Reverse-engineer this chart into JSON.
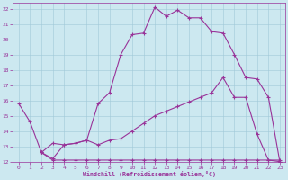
{
  "xlabel": "Windchill (Refroidissement éolien,°C)",
  "bg_color": "#cce8f0",
  "line_color": "#993399",
  "xlim": [
    -0.5,
    23.5
  ],
  "ylim": [
    12,
    22.4
  ],
  "xticks": [
    0,
    1,
    2,
    3,
    4,
    5,
    6,
    7,
    8,
    9,
    10,
    11,
    12,
    13,
    14,
    15,
    16,
    17,
    18,
    19,
    20,
    21,
    22,
    23
  ],
  "yticks": [
    12,
    13,
    14,
    15,
    16,
    17,
    18,
    19,
    20,
    21,
    22
  ],
  "line1_x": [
    0,
    1,
    2,
    3,
    4,
    5,
    6,
    7,
    8,
    9,
    10,
    11,
    12,
    13,
    14,
    15,
    16,
    17,
    18,
    19,
    20,
    21,
    22,
    23
  ],
  "line1_y": [
    15.8,
    14.6,
    12.6,
    12.1,
    12.1,
    12.1,
    12.1,
    12.1,
    12.1,
    12.1,
    12.1,
    12.1,
    12.1,
    12.1,
    12.1,
    12.1,
    12.1,
    12.1,
    12.1,
    12.1,
    12.1,
    12.1,
    12.1,
    12.1
  ],
  "line2_x": [
    2,
    3,
    4,
    5,
    6,
    7,
    8,
    9,
    10,
    11,
    12,
    13,
    14,
    15,
    16,
    17,
    18,
    19,
    20,
    21,
    22,
    23
  ],
  "line2_y": [
    12.6,
    13.2,
    13.1,
    13.2,
    13.4,
    15.8,
    16.5,
    19.0,
    20.3,
    20.4,
    22.1,
    21.5,
    21.9,
    21.4,
    21.4,
    20.5,
    20.4,
    19.0,
    17.5,
    17.4,
    16.2,
    12.0
  ],
  "line3_x": [
    2,
    3,
    4,
    5,
    6,
    7,
    8,
    9,
    10,
    11,
    12,
    13,
    14,
    15,
    16,
    17,
    18,
    19,
    20,
    21,
    22,
    23
  ],
  "line3_y": [
    12.6,
    12.2,
    13.1,
    13.2,
    13.4,
    13.1,
    13.4,
    13.5,
    14.0,
    14.5,
    15.0,
    15.3,
    15.6,
    15.9,
    16.2,
    16.5,
    17.5,
    16.2,
    16.2,
    13.8,
    12.1,
    12.0
  ]
}
